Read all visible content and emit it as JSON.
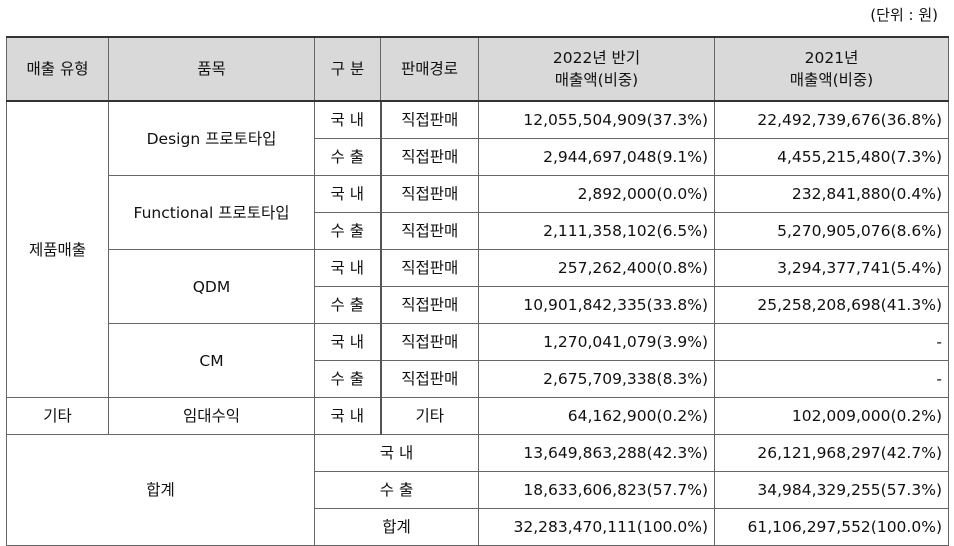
{
  "unit_label": "(단위 : 원)",
  "headers": {
    "type": "매출 유형",
    "item": "품목",
    "division": "구 분",
    "channel": "판매경로",
    "h2022_line1": "2022년 반기",
    "h2022_line2": "매출액(비중)",
    "h2021_line1": "2021년",
    "h2021_line2": "매출액(비중)"
  },
  "product_sales": {
    "type_label": "제품매출",
    "items": [
      {
        "name": "Design 프로토타입",
        "rows": [
          {
            "division": "국 내",
            "channel": "직접판매",
            "v2022": "12,055,504,909(37.3%)",
            "v2021": "22,492,739,676(36.8%)"
          },
          {
            "division": "수 출",
            "channel": "직접판매",
            "v2022": "2,944,697,048(9.1%)",
            "v2021": "4,455,215,480(7.3%)"
          }
        ]
      },
      {
        "name": "Functional 프로토타입",
        "rows": [
          {
            "division": "국 내",
            "channel": "직접판매",
            "v2022": "2,892,000(0.0%)",
            "v2021": "232,841,880(0.4%)"
          },
          {
            "division": "수 출",
            "channel": "직접판매",
            "v2022": "2,111,358,102(6.5%)",
            "v2021": "5,270,905,076(8.6%)"
          }
        ]
      },
      {
        "name": "QDM",
        "rows": [
          {
            "division": "국 내",
            "channel": "직접판매",
            "v2022": "257,262,400(0.8%)",
            "v2021": "3,294,377,741(5.4%)"
          },
          {
            "division": "수 출",
            "channel": "직접판매",
            "v2022": "10,901,842,335(33.8%)",
            "v2021": "25,258,208,698(41.3%)"
          }
        ]
      },
      {
        "name": "CM",
        "rows": [
          {
            "division": "국 내",
            "channel": "직접판매",
            "v2022": "1,270,041,079(3.9%)",
            "v2021": "-"
          },
          {
            "division": "수 출",
            "channel": "직접판매",
            "v2022": "2,675,709,338(8.3%)",
            "v2021": "-"
          }
        ]
      }
    ]
  },
  "other": {
    "type_label": "기타",
    "item": "임대수익",
    "division": "국 내",
    "channel": "기타",
    "v2022": "64,162,900(0.2%)",
    "v2021": "102,009,000(0.2%)"
  },
  "totals": {
    "label": "합계",
    "rows": [
      {
        "label": "국 내",
        "v2022": "13,649,863,288(42.3%)",
        "v2021": "26,121,968,297(42.7%)"
      },
      {
        "label": "수 출",
        "v2022": "18,633,606,823(57.7%)",
        "v2021": "34,984,329,255(57.3%)"
      },
      {
        "label": "합계",
        "v2022": "32,283,470,111(100.0%)",
        "v2021": "61,106,297,552(100.0%)"
      }
    ]
  }
}
